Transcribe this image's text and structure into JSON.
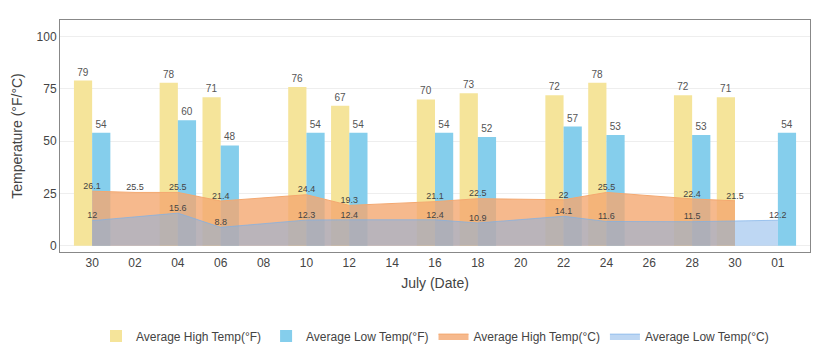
{
  "chart_data": {
    "type": "bar",
    "categories": [
      "30",
      "02",
      "04",
      "06",
      "08",
      "10",
      "12",
      "14",
      "16",
      "18",
      "20",
      "22",
      "24",
      "26",
      "28",
      "30",
      "01"
    ],
    "xlabel": "July (Date)",
    "ylabel": "Temperature (°F/°C)",
    "ylim": [
      -3,
      108
    ],
    "yticks": [
      0,
      25,
      50,
      75,
      100
    ],
    "grid": true,
    "legend": "bottom",
    "data_labels": true,
    "series": [
      {
        "name": "Average High Temp(°F)",
        "type": "bar",
        "color": "#F5E49A",
        "values": [
          79,
          null,
          78,
          71,
          null,
          76,
          67,
          null,
          70,
          73,
          null,
          72,
          78,
          null,
          72,
          71,
          null
        ]
      },
      {
        "name": "Average Low Temp(°F)",
        "type": "bar",
        "color": "#85CEEC",
        "values": [
          54,
          null,
          60,
          48,
          null,
          54,
          54,
          null,
          54,
          52,
          null,
          57,
          53,
          null,
          53,
          null,
          54
        ]
      },
      {
        "name": "Average High Temp(°C)",
        "type": "area",
        "color": "#F4A870",
        "values": [
          26.1,
          25.5,
          25.5,
          21.4,
          null,
          24.4,
          19.3,
          null,
          21.1,
          22.5,
          null,
          22.0,
          25.5,
          null,
          22.4,
          21.5,
          null
        ]
      },
      {
        "name": "Average Low Temp(°C)",
        "type": "area",
        "color": "#7EB0E8",
        "values": [
          12.0,
          null,
          15.6,
          8.8,
          null,
          12.3,
          12.4,
          null,
          12.4,
          10.9,
          null,
          14.1,
          11.6,
          null,
          11.5,
          null,
          12.2
        ]
      }
    ]
  }
}
